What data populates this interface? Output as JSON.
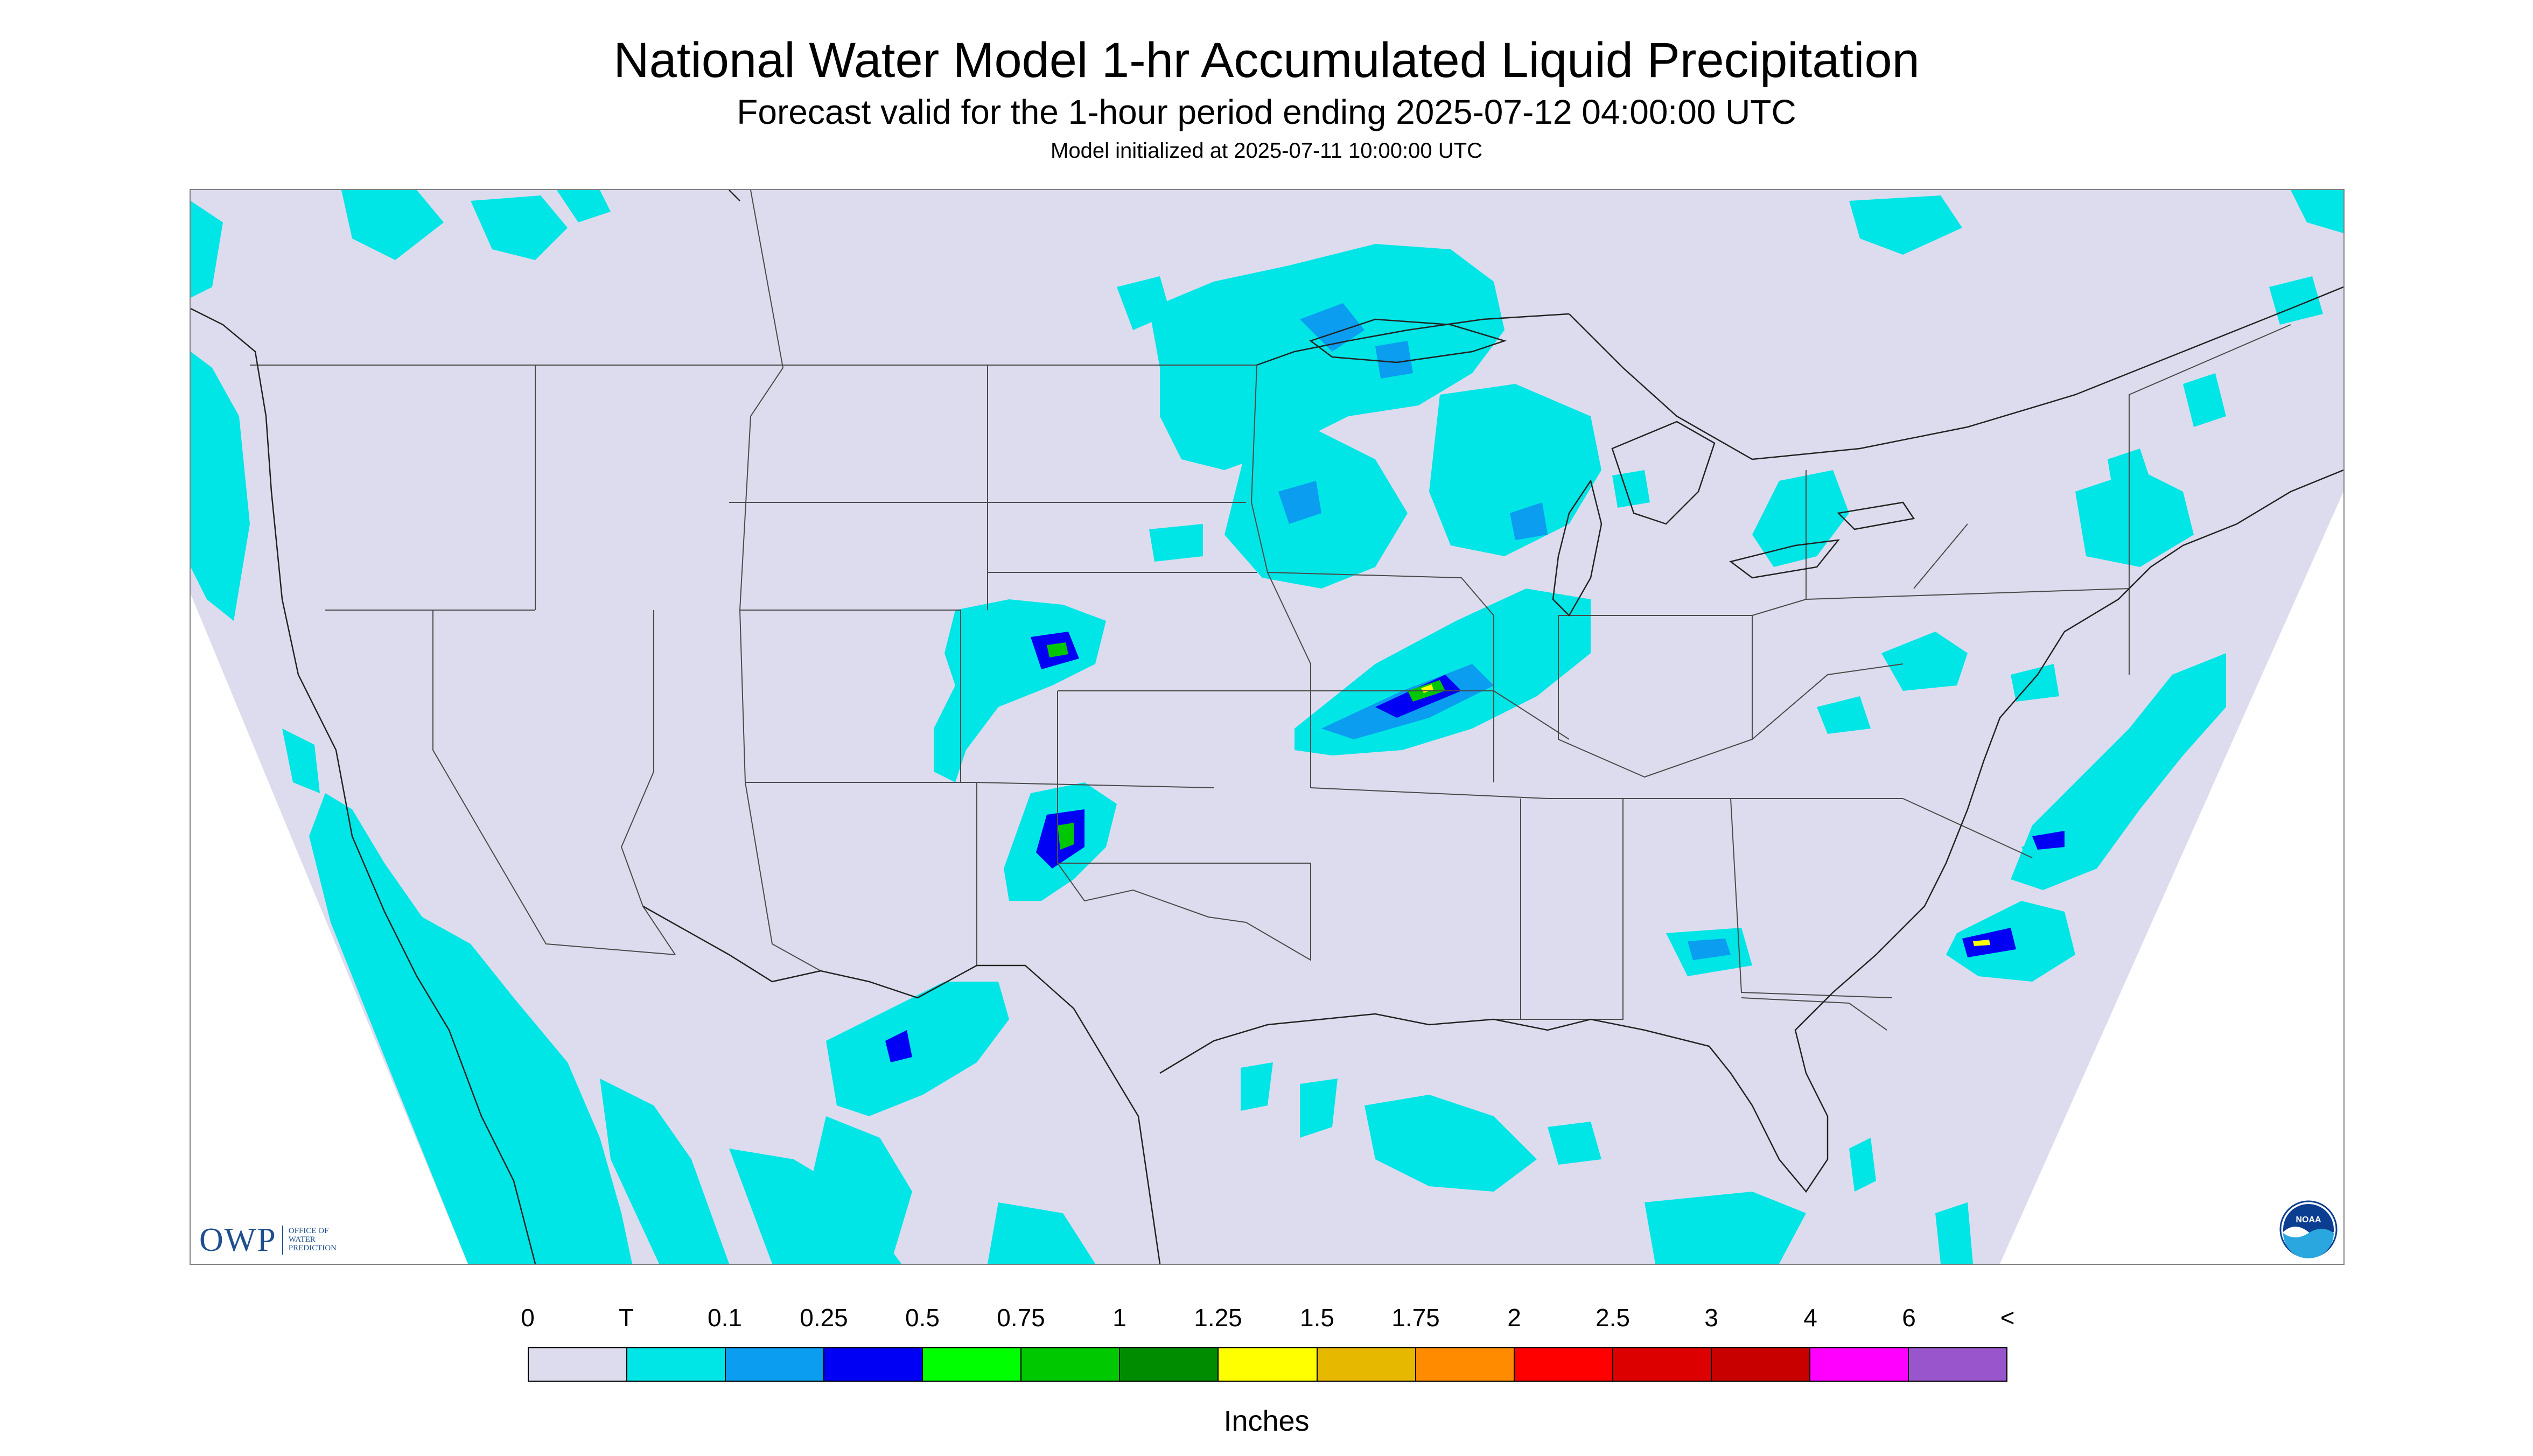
{
  "title": "National Water Model 1-hr Accumulated Liquid Precipitation",
  "subtitle": "Forecast valid for the 1-hour period ending 2025-07-12 04:00:00 UTC",
  "model_init": "Model initialized at 2025-07-11 10:00:00 UTC",
  "legend": {
    "units": "Inches",
    "labels": [
      "0",
      "T",
      "0.1",
      "0.25",
      "0.5",
      "0.75",
      "1",
      "1.25",
      "1.5",
      "1.75",
      "2",
      "2.5",
      "3",
      "4",
      "6",
      "<"
    ],
    "colors": [
      "#dcdcee",
      "#00e5e5",
      "#0a9df0",
      "#0000f5",
      "#00ff00",
      "#00c800",
      "#008c00",
      "#ffff00",
      "#e6b800",
      "#ff8c00",
      "#ff0000",
      "#dd0000",
      "#c80000",
      "#ff00ff",
      "#9955cc"
    ]
  },
  "logos": {
    "owp": {
      "letters": "OWP",
      "text": "OFFICE OF\nWATER\nPREDICTION"
    },
    "noaa": {
      "text": "NOAA"
    }
  },
  "map": {
    "projection": "Lambert Conformal (CONUS)",
    "background_color": "#dcdcee",
    "precip_colors": {
      "trace": "#00e5e5",
      "light": "#0a9df0",
      "moderate": "#0000f5",
      "heavy": "#00ff00",
      "heavier": "#00c800",
      "intense": "#ffff00"
    }
  }
}
